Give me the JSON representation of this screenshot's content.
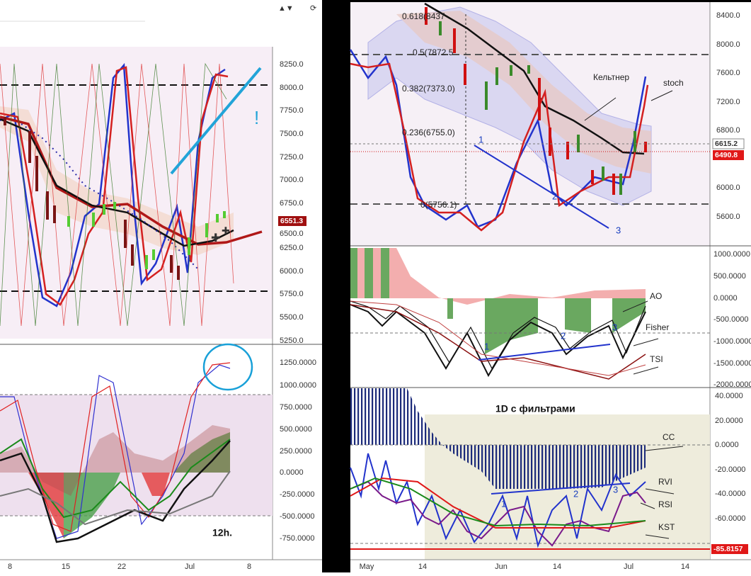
{
  "left_panel": {
    "price_axis": [
      "8250.0",
      "8000.0",
      "7750.0",
      "7500.0",
      "7250.0",
      "7000.0",
      "6750.0",
      "6500.0",
      "6250.0",
      "6000.0",
      "5750.0",
      "5500.0",
      "5250.0"
    ],
    "price_tag": "6551.3",
    "annotation": "!",
    "osc_axis": [
      "1250.0000",
      "1000.0000",
      "750.0000",
      "500.0000",
      "250.0000",
      "0.0000",
      "-250.0000",
      "-500.0000",
      "-750.0000"
    ],
    "timeframe": "12h.",
    "time_axis": [
      "8",
      "15",
      "22",
      "Jul",
      "8"
    ]
  },
  "right_panel": {
    "price_axis": [
      "8400.0",
      "8000.0",
      "7600.0",
      "7200.0",
      "6800.0",
      "6000.0",
      "5600.0"
    ],
    "price_tags": [
      "6615.2",
      "6490.8"
    ],
    "fib_levels": [
      "0.618(8437",
      "0.5(7872.5",
      "0.382(7373.0)",
      "0.236(6755.0)",
      "0(5756.1)"
    ],
    "labels": [
      "Кельтнер",
      "stoch"
    ],
    "wave_numbers": [
      "1",
      "2",
      "3"
    ],
    "mid_axis": [
      "1000.0000",
      "500.0000",
      "0.0000",
      "-500.0000",
      "-1000.0000",
      "-1500.0000",
      "-2000.0000"
    ],
    "mid_labels": [
      "AO",
      "Fisher",
      "TSI"
    ],
    "mid_numbers": [
      "1",
      "2",
      "3"
    ],
    "bottom_title": "1D  с фильтрами",
    "bottom_axis": [
      "40.0000",
      "20.0000",
      "0.0000",
      "-20.0000",
      "-40.0000",
      "-60.0000"
    ],
    "bottom_tag": "-85.8157",
    "bottom_labels": [
      "CC",
      "RVI",
      "RSI",
      "KST"
    ],
    "bottom_numbers": [
      "1",
      "2",
      "3"
    ],
    "time_axis": [
      "May",
      "14",
      "Jun",
      "14",
      "Jul",
      "14"
    ]
  }
}
